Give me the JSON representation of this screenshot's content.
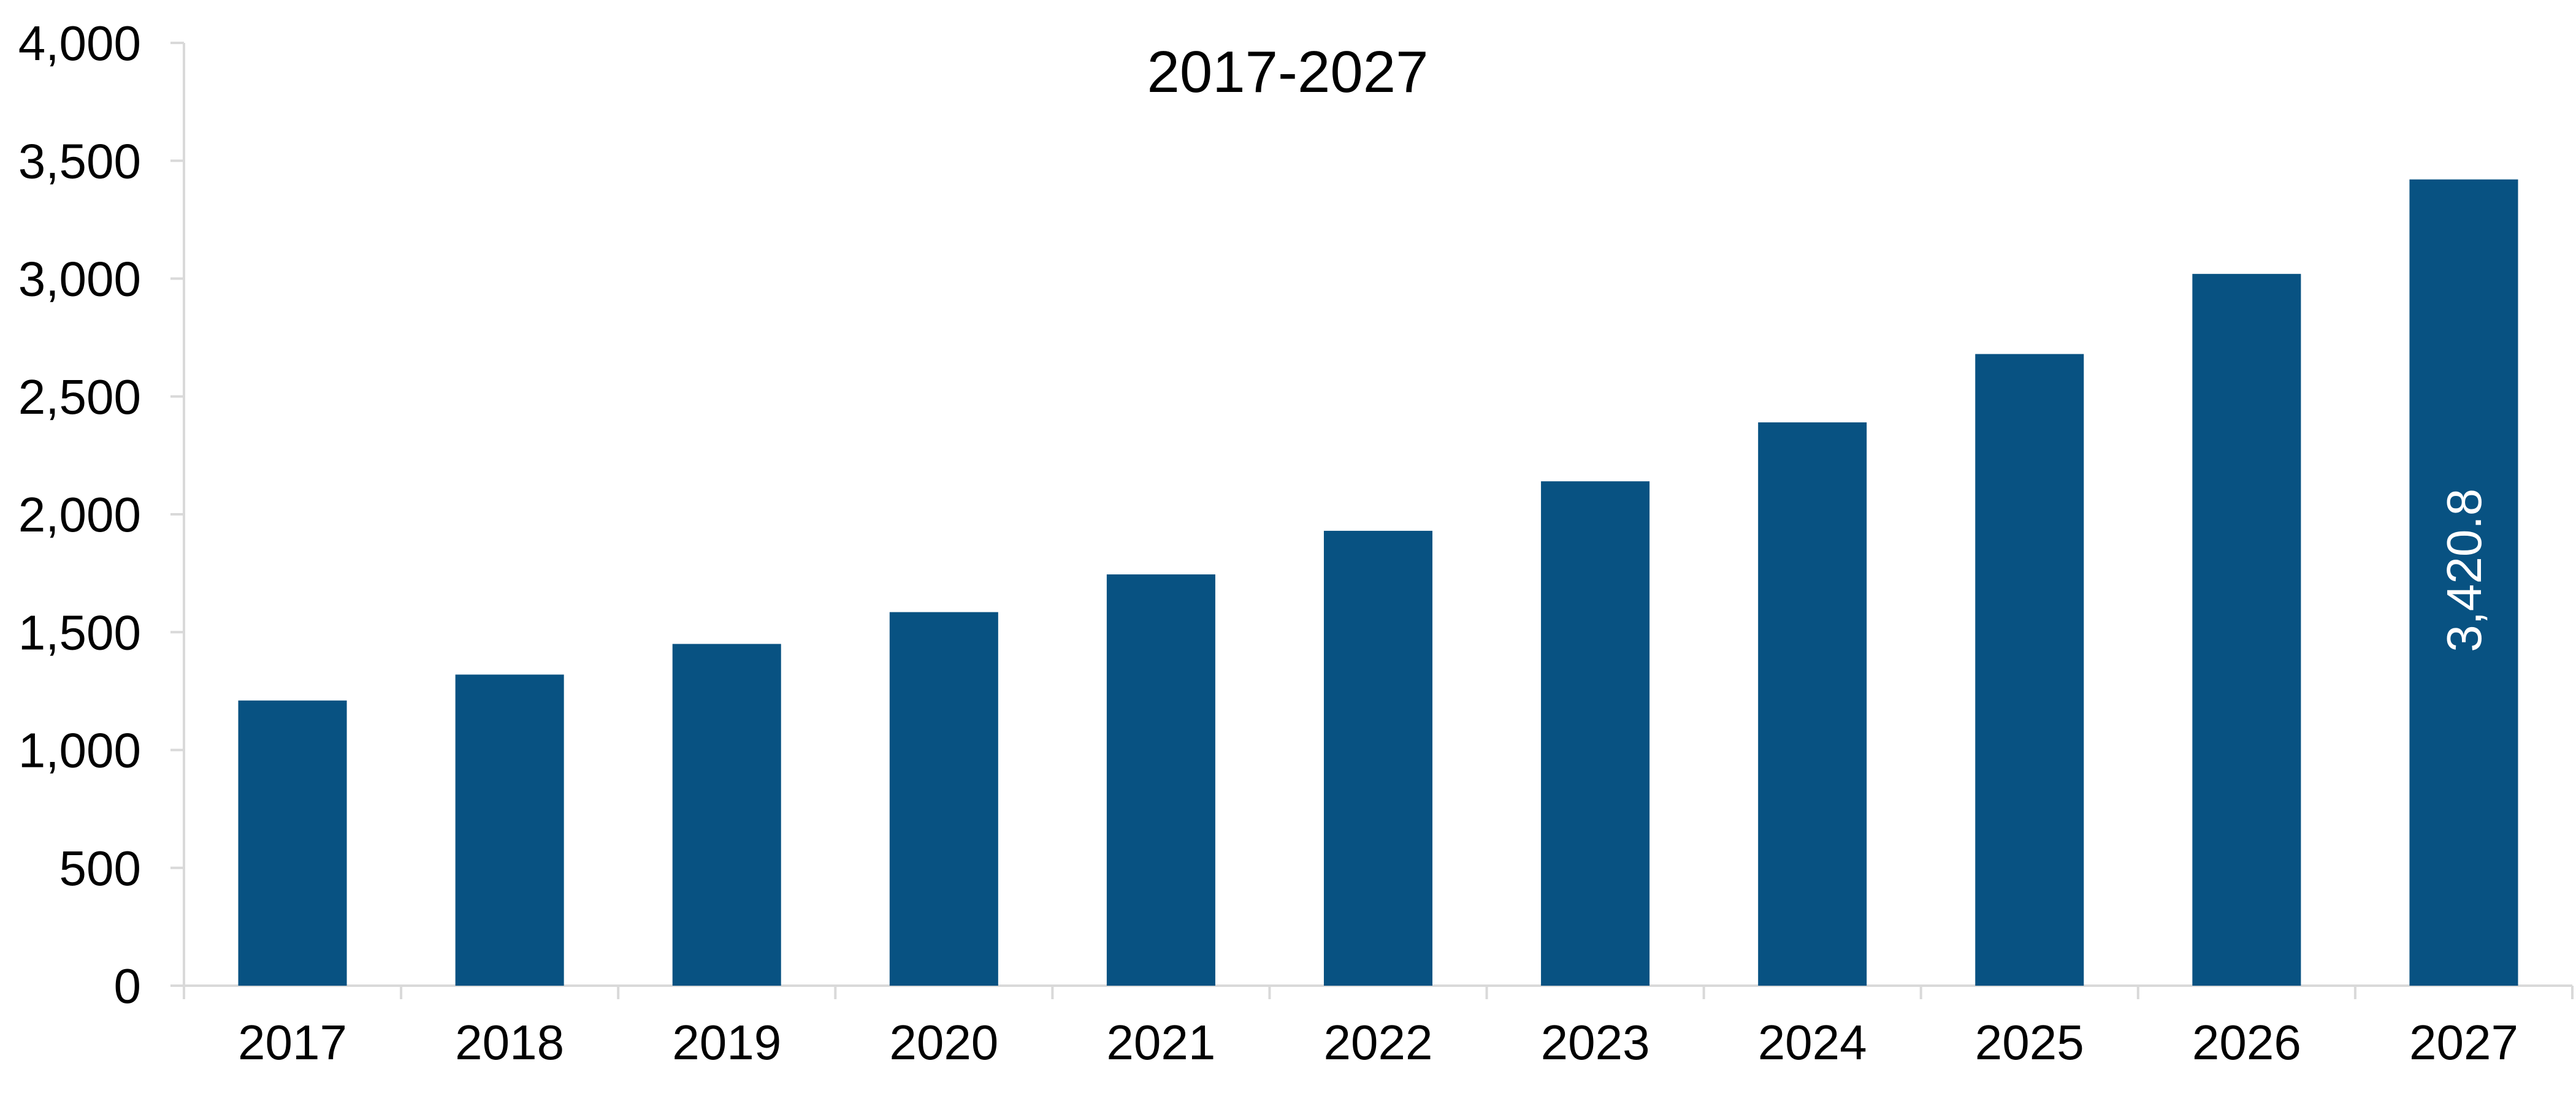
{
  "chart_data": {
    "type": "bar",
    "title": "2017-2027",
    "xlabel": "",
    "ylabel": "",
    "categories": [
      "2017",
      "2018",
      "2019",
      "2020",
      "2021",
      "2022",
      "2023",
      "2024",
      "2025",
      "2026",
      "2027"
    ],
    "series": [
      {
        "values": [
          1210,
          1320,
          1450,
          1585,
          1745,
          1930,
          2140,
          2390,
          2680,
          3020,
          3420.8
        ],
        "color": "#085282"
      }
    ],
    "ylim": [
      0,
      4000
    ],
    "yticks": [
      0,
      500,
      1000,
      1500,
      2000,
      2500,
      3000,
      3500,
      4000
    ],
    "ytick_labels": [
      "0",
      "500",
      "1,000",
      "1,500",
      "2,000",
      "2,500",
      "3,000",
      "3,500",
      "4,000"
    ],
    "data_labels": [
      {
        "category": "2027",
        "text": "3,420.8",
        "orientation": "vertical",
        "position": "inside"
      }
    ],
    "grid": false,
    "legend": "none",
    "axis_color": "#d9d9d9"
  }
}
